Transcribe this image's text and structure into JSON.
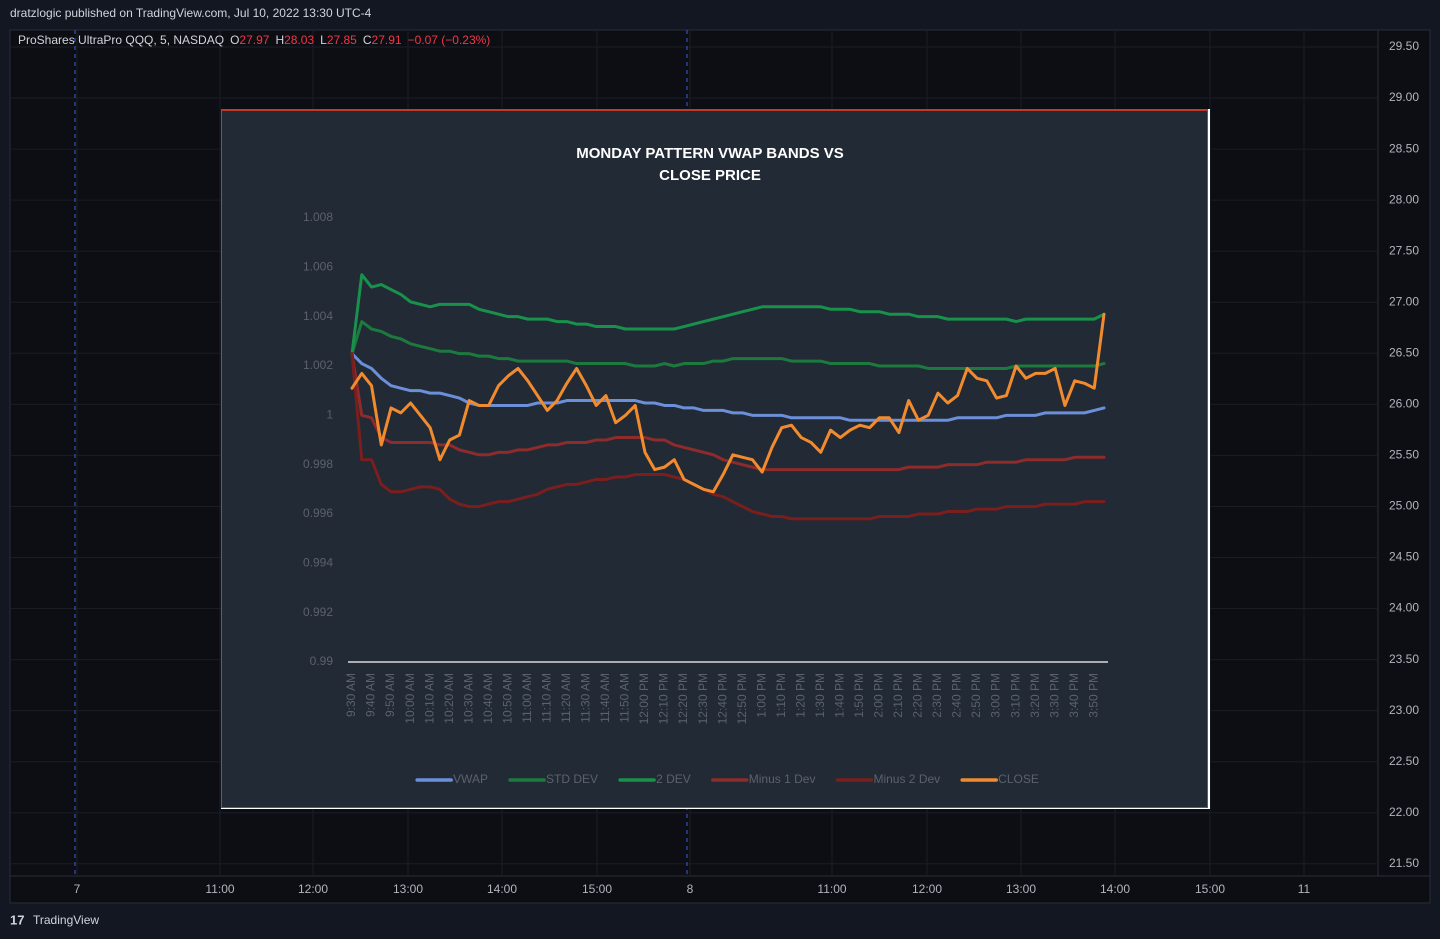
{
  "header": {
    "publisher": "dratzlogic published on TradingView.com, Jul 10, 2022 13:30 UTC-4"
  },
  "symbol": {
    "name": "ProShares UltraPro QQQ, 5, NASDAQ",
    "ohlc": [
      {
        "label": "O",
        "value": "27.97"
      },
      {
        "label": "H",
        "value": "28.03"
      },
      {
        "label": "L",
        "value": "27.85"
      },
      {
        "label": "C",
        "value": "27.91"
      }
    ],
    "change": "−0.07 (−0.23%)"
  },
  "price_axis": [
    "29.50",
    "29.00",
    "28.50",
    "28.00",
    "27.50",
    "27.00",
    "26.50",
    "26.00",
    "25.50",
    "25.00",
    "24.50",
    "24.00",
    "23.50",
    "23.00",
    "22.50",
    "22.00",
    "21.50"
  ],
  "time_axis": [
    "7",
    "11:00",
    "12:00",
    "13:00",
    "14:00",
    "15:00",
    "8",
    "11:00",
    "12:00",
    "13:00",
    "14:00",
    "15:00",
    "11"
  ],
  "footer": {
    "brand": "TradingView"
  },
  "chart_data": {
    "type": "line",
    "title": [
      "MONDAY PATTERN VWAP BANDS VS",
      "CLOSE PRICE"
    ],
    "categories": [
      "9:30 AM",
      null,
      "9:40 AM",
      null,
      "9:50 AM",
      null,
      "10:00 AM",
      null,
      "10:10 AM",
      null,
      "10:20 AM",
      null,
      "10:30 AM",
      null,
      "10:40 AM",
      null,
      "10:50 AM",
      null,
      "11:00 AM",
      null,
      "11:10 AM",
      null,
      "11:20 AM",
      null,
      "11:30 AM",
      null,
      "11:40 AM",
      null,
      "11:50 AM",
      null,
      "12:00 PM",
      null,
      "12:10 PM",
      null,
      "12:20 PM",
      null,
      "12:30 PM",
      null,
      "12:40 PM",
      null,
      "12:50 PM",
      null,
      "1:00 PM",
      null,
      "1:10 PM",
      null,
      "1:20 PM",
      null,
      "1:30 PM",
      null,
      "1:40 PM",
      null,
      "1:50 PM",
      null,
      "2:00 PM",
      null,
      "2:10 PM",
      null,
      "2:20 PM",
      null,
      "2:30 PM",
      null,
      "2:40 PM",
      null,
      "2:50 PM",
      null,
      "3:00 PM",
      null,
      "3:10 PM",
      null,
      "3:20 PM",
      null,
      "3:30 PM",
      null,
      "3:40 PM",
      null,
      "3:50 PM",
      null
    ],
    "ylim": [
      0.99,
      1.008
    ],
    "yticks": [
      0.99,
      0.992,
      0.994,
      0.996,
      0.998,
      1,
      1.002,
      1.004,
      1.006,
      1.008
    ],
    "legend": "bottom",
    "series": [
      {
        "name": "VWAP",
        "color": "#6b8fd8",
        "values": [
          1.0025,
          1.0021,
          1.0019,
          1.0015,
          1.0012,
          1.0011,
          1.001,
          1.001,
          1.0009,
          1.0009,
          1.0008,
          1.0007,
          1.0005,
          1.0004,
          1.0004,
          1.0004,
          1.0004,
          1.0004,
          1.0004,
          1.0005,
          1.0005,
          1.0005,
          1.0006,
          1.0006,
          1.0006,
          1.0006,
          1.0006,
          1.0006,
          1.0006,
          1.0006,
          1.0005,
          1.0005,
          1.0004,
          1.0004,
          1.0003,
          1.0003,
          1.0002,
          1.0002,
          1.0002,
          1.0001,
          1.0001,
          1.0,
          1.0,
          1.0,
          1.0,
          0.9999,
          0.9999,
          0.9999,
          0.9999,
          0.9999,
          0.9999,
          0.9998,
          0.9998,
          0.9998,
          0.9998,
          0.9998,
          0.9998,
          0.9998,
          0.9998,
          0.9998,
          0.9998,
          0.9998,
          0.9999,
          0.9999,
          0.9999,
          0.9999,
          0.9999,
          1.0,
          1.0,
          1.0,
          1.0,
          1.0001,
          1.0001,
          1.0001,
          1.0001,
          1.0001,
          1.0002,
          1.0003
        ]
      },
      {
        "name": "STD DEV",
        "color": "#1d7a3e",
        "values": [
          1.0025,
          1.0038,
          1.0035,
          1.0034,
          1.0032,
          1.0031,
          1.0029,
          1.0028,
          1.0027,
          1.0026,
          1.0026,
          1.0025,
          1.0025,
          1.0024,
          1.0024,
          1.0023,
          1.0023,
          1.0022,
          1.0022,
          1.0022,
          1.0022,
          1.0022,
          1.0022,
          1.0021,
          1.0021,
          1.0021,
          1.0021,
          1.0021,
          1.0021,
          1.002,
          1.002,
          1.002,
          1.0021,
          1.002,
          1.0021,
          1.0021,
          1.0021,
          1.0022,
          1.0022,
          1.0023,
          1.0023,
          1.0023,
          1.0023,
          1.0023,
          1.0023,
          1.0022,
          1.0022,
          1.0022,
          1.0022,
          1.0021,
          1.0021,
          1.0021,
          1.0021,
          1.0021,
          1.002,
          1.002,
          1.002,
          1.002,
          1.002,
          1.0019,
          1.0019,
          1.0019,
          1.0019,
          1.0019,
          1.0019,
          1.0019,
          1.0019,
          1.0019,
          1.002,
          1.002,
          1.002,
          1.002,
          1.002,
          1.002,
          1.002,
          1.002,
          1.002,
          1.0021
        ]
      },
      {
        "name": "2 DEV",
        "color": "#18924b",
        "values": [
          1.0025,
          1.0057,
          1.0052,
          1.0053,
          1.0051,
          1.0049,
          1.0046,
          1.0045,
          1.0044,
          1.0045,
          1.0045,
          1.0045,
          1.0045,
          1.0043,
          1.0042,
          1.0041,
          1.004,
          1.004,
          1.0039,
          1.0039,
          1.0039,
          1.0038,
          1.0038,
          1.0037,
          1.0037,
          1.0036,
          1.0036,
          1.0036,
          1.0035,
          1.0035,
          1.0035,
          1.0035,
          1.0035,
          1.0035,
          1.0036,
          1.0037,
          1.0038,
          1.0039,
          1.004,
          1.0041,
          1.0042,
          1.0043,
          1.0044,
          1.0044,
          1.0044,
          1.0044,
          1.0044,
          1.0044,
          1.0044,
          1.0043,
          1.0043,
          1.0043,
          1.0042,
          1.0042,
          1.0042,
          1.0041,
          1.0041,
          1.0041,
          1.004,
          1.004,
          1.004,
          1.0039,
          1.0039,
          1.0039,
          1.0039,
          1.0039,
          1.0039,
          1.0039,
          1.0038,
          1.0039,
          1.0039,
          1.0039,
          1.0039,
          1.0039,
          1.0039,
          1.0039,
          1.0039,
          1.0041
        ]
      },
      {
        "name": "Minus 1 Dev",
        "color": "#8e2b2b",
        "values": [
          1.0025,
          1.0,
          0.9999,
          0.9991,
          0.9989,
          0.9989,
          0.9989,
          0.9989,
          0.9989,
          0.9988,
          0.9988,
          0.9986,
          0.9985,
          0.9984,
          0.9984,
          0.9985,
          0.9985,
          0.9986,
          0.9986,
          0.9987,
          0.9988,
          0.9988,
          0.9989,
          0.9989,
          0.9989,
          0.999,
          0.999,
          0.9991,
          0.9991,
          0.9991,
          0.9991,
          0.999,
          0.999,
          0.9988,
          0.9987,
          0.9986,
          0.9985,
          0.9984,
          0.9982,
          0.9981,
          0.998,
          0.9979,
          0.9978,
          0.9978,
          0.9978,
          0.9978,
          0.9978,
          0.9978,
          0.9978,
          0.9978,
          0.9978,
          0.9978,
          0.9978,
          0.9978,
          0.9978,
          0.9978,
          0.9978,
          0.9979,
          0.9979,
          0.9979,
          0.9979,
          0.998,
          0.998,
          0.998,
          0.998,
          0.9981,
          0.9981,
          0.9981,
          0.9981,
          0.9982,
          0.9982,
          0.9982,
          0.9982,
          0.9982,
          0.9983,
          0.9983,
          0.9983,
          0.9983
        ]
      },
      {
        "name": "Minus 2 Dev",
        "color": "#7a1e1e",
        "values": [
          1.0025,
          0.9982,
          0.9982,
          0.9972,
          0.9969,
          0.9969,
          0.997,
          0.9971,
          0.9971,
          0.997,
          0.9966,
          0.9964,
          0.9963,
          0.9963,
          0.9964,
          0.9965,
          0.9965,
          0.9966,
          0.9967,
          0.9968,
          0.997,
          0.9971,
          0.9972,
          0.9972,
          0.9973,
          0.9974,
          0.9974,
          0.9975,
          0.9975,
          0.9976,
          0.9976,
          0.9976,
          0.9976,
          0.9975,
          0.9974,
          0.9972,
          0.997,
          0.9968,
          0.9967,
          0.9965,
          0.9963,
          0.9961,
          0.996,
          0.9959,
          0.9959,
          0.9958,
          0.9958,
          0.9958,
          0.9958,
          0.9958,
          0.9958,
          0.9958,
          0.9958,
          0.9958,
          0.9959,
          0.9959,
          0.9959,
          0.9959,
          0.996,
          0.996,
          0.996,
          0.9961,
          0.9961,
          0.9961,
          0.9962,
          0.9962,
          0.9962,
          0.9963,
          0.9963,
          0.9963,
          0.9963,
          0.9964,
          0.9964,
          0.9964,
          0.9964,
          0.9965,
          0.9965,
          0.9965
        ]
      },
      {
        "name": "CLOSE",
        "color": "#f28b2e",
        "values": [
          1.0011,
          1.0017,
          1.0012,
          0.9988,
          1.0003,
          1.0001,
          1.0005,
          1.0,
          0.9995,
          0.9982,
          0.999,
          0.9992,
          1.0006,
          1.0004,
          1.0004,
          1.0012,
          1.0016,
          1.0019,
          1.0014,
          1.0008,
          1.0002,
          1.0006,
          1.0013,
          1.0019,
          1.0012,
          1.0004,
          1.0008,
          0.9997,
          1.0,
          1.0004,
          0.9985,
          0.9978,
          0.9979,
          0.9982,
          0.9974,
          0.9972,
          0.997,
          0.9969,
          0.9976,
          0.9984,
          0.9983,
          0.9982,
          0.9977,
          0.9987,
          0.9995,
          0.9996,
          0.9991,
          0.9989,
          0.9985,
          0.9994,
          0.9991,
          0.9994,
          0.9996,
          0.9995,
          0.9999,
          0.9999,
          0.9993,
          1.0006,
          0.9998,
          1.0,
          1.0009,
          1.0005,
          1.0008,
          1.0019,
          1.0015,
          1.0014,
          1.0007,
          1.0008,
          1.002,
          1.0015,
          1.0017,
          1.0017,
          1.0019,
          1.0004,
          1.0014,
          1.0013,
          1.0011,
          1.0041
        ]
      }
    ]
  }
}
